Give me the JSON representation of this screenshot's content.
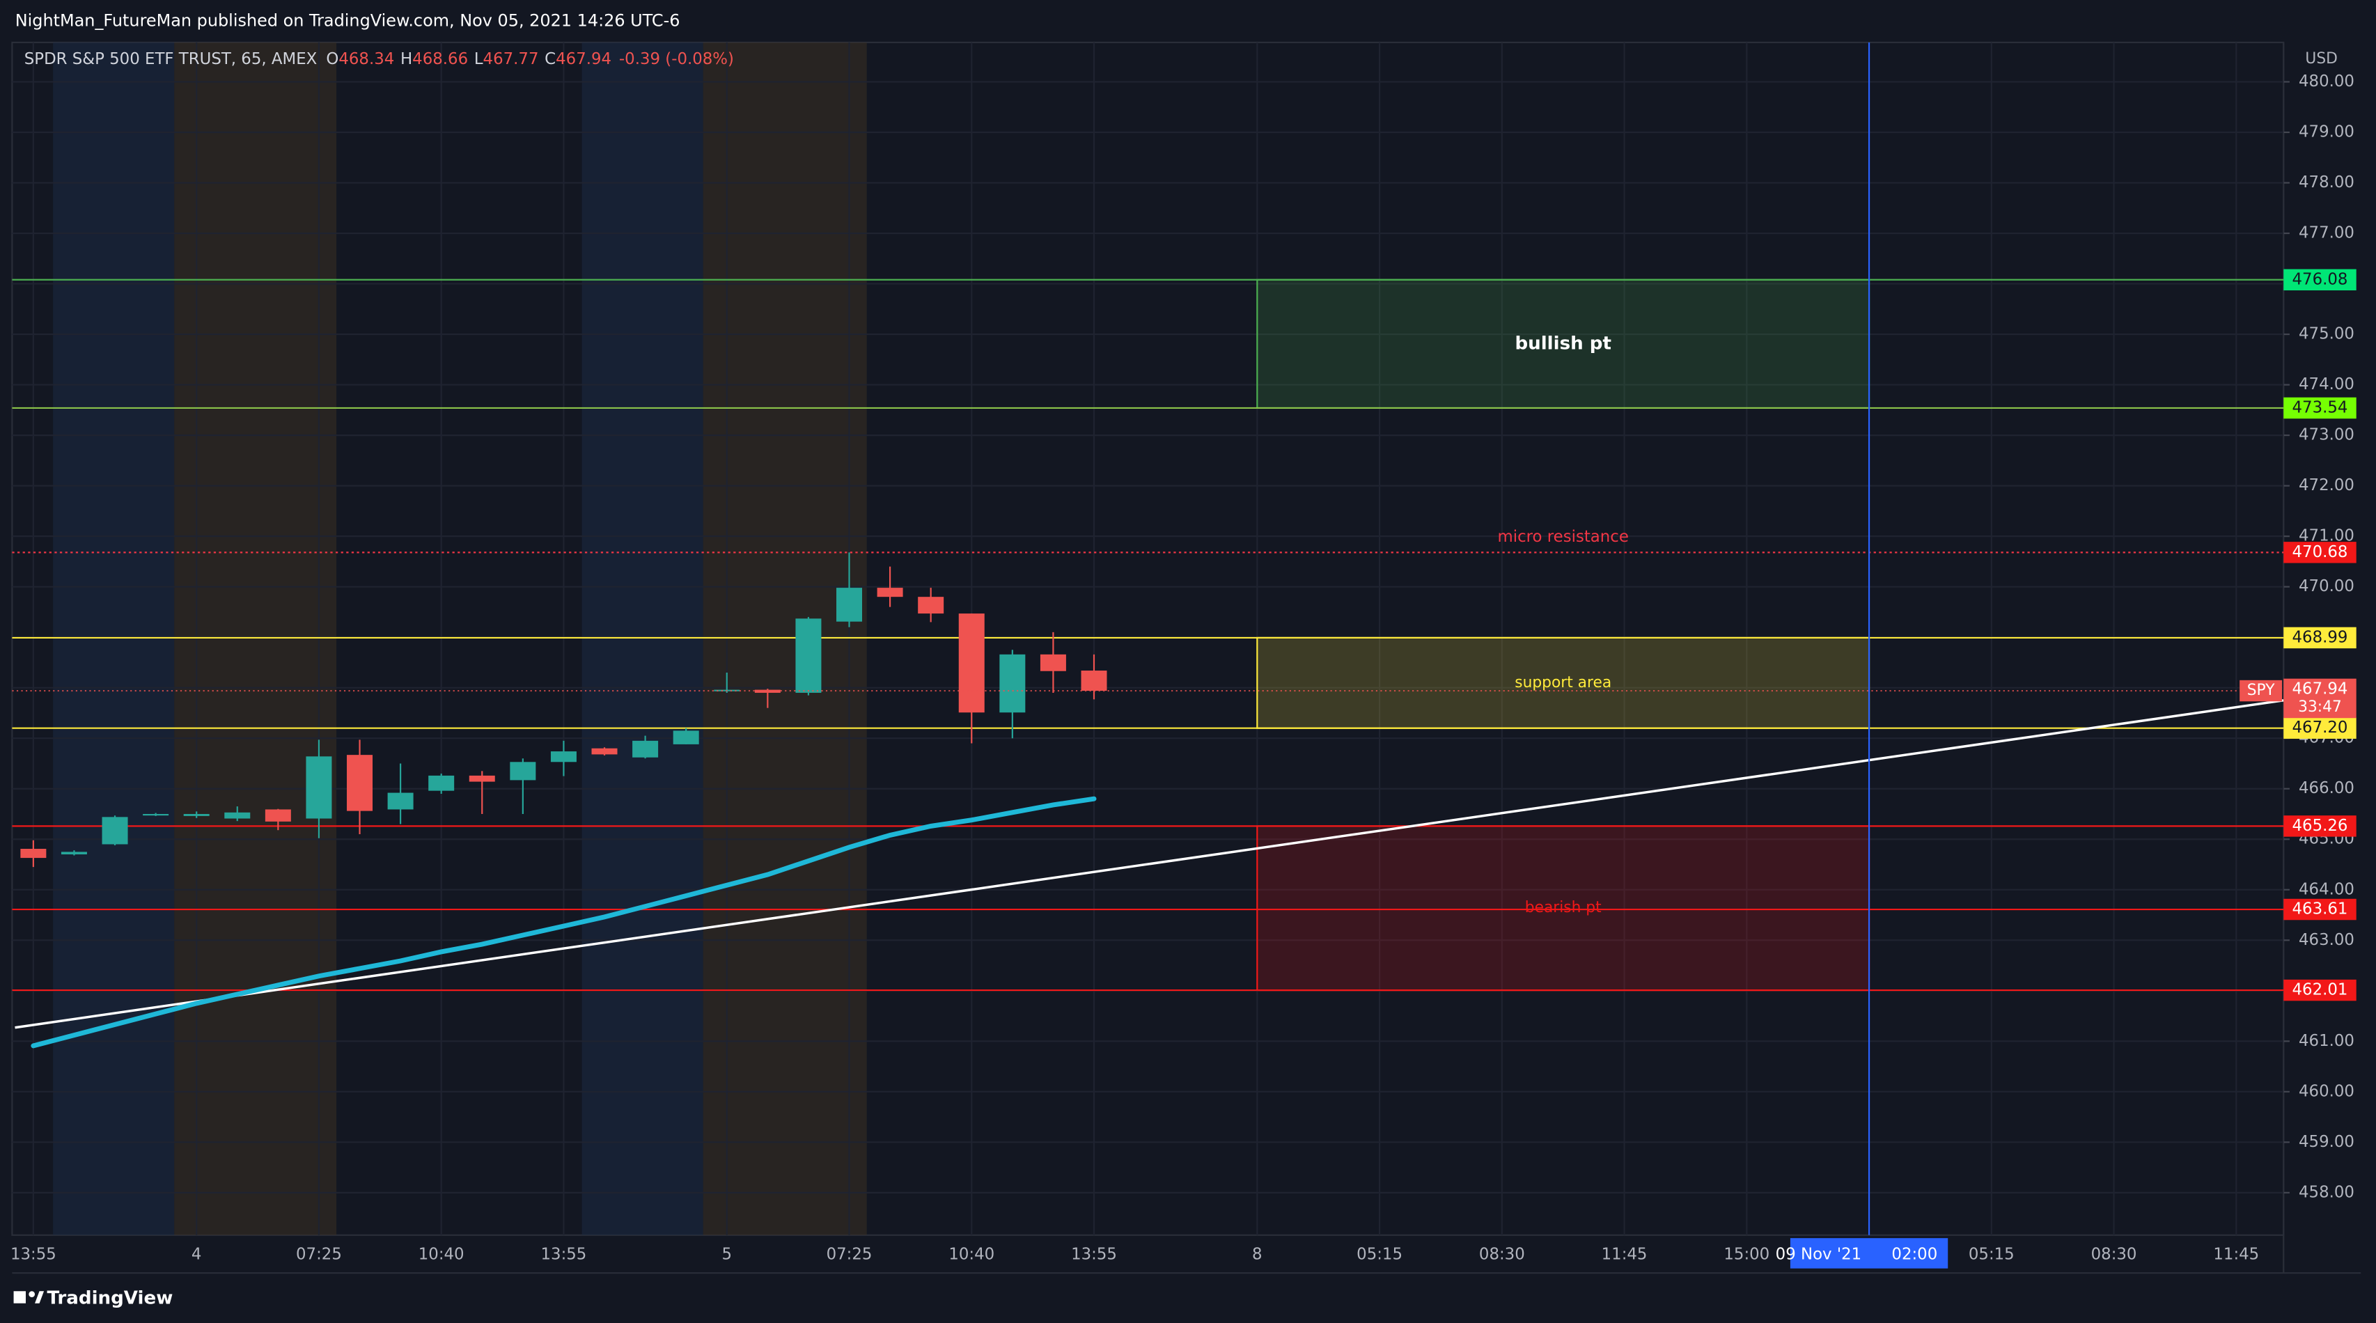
{
  "chart_data": {
    "type": "candlestick",
    "header": "NightMan_FutureMan published on TradingView.com, Nov 05, 2021 14:26 UTC-6",
    "legend": {
      "symbol": "SPDR S&P 500 ETF TRUST, 65, AMEX",
      "fields": [
        {
          "key": "O",
          "value": 468.34
        },
        {
          "key": "H",
          "value": 468.66
        },
        {
          "key": "L",
          "value": 467.77
        },
        {
          "key": "C",
          "value": 467.94
        }
      ],
      "change": "-0.39 (-0.08%)"
    },
    "currency": "USD",
    "footer": "TradingView",
    "up_color": "#26a69a",
    "down_color": "#ef5350",
    "open": [
      464.81,
      464.7,
      464.9,
      465.48,
      465.46,
      465.41,
      465.59,
      465.41,
      466.67,
      465.59,
      465.96,
      466.26,
      466.17,
      466.53,
      466.8,
      466.62,
      466.88,
      467.93,
      467.96,
      467.9,
      469.31,
      469.98,
      469.8,
      469.47,
      467.51,
      468.66,
      468.34
    ],
    "high": [
      464.98,
      464.78,
      465.47,
      465.52,
      465.55,
      465.65,
      465.6,
      466.97,
      466.97,
      466.5,
      466.3,
      466.35,
      466.6,
      466.95,
      466.82,
      467.05,
      467.2,
      468.3,
      467.98,
      469.4,
      470.68,
      470.4,
      469.98,
      469.47,
      468.75,
      469.1,
      468.66
    ],
    "low": [
      464.45,
      464.68,
      464.88,
      465.46,
      465.42,
      465.36,
      465.18,
      465.02,
      465.1,
      465.3,
      465.9,
      465.5,
      465.5,
      466.25,
      466.66,
      466.6,
      466.88,
      467.9,
      467.6,
      467.85,
      469.2,
      469.6,
      469.3,
      466.9,
      467.0,
      467.9,
      467.77
    ],
    "close": [
      464.63,
      464.75,
      465.44,
      465.5,
      465.5,
      465.53,
      465.35,
      466.64,
      465.56,
      465.92,
      466.26,
      466.14,
      466.53,
      466.74,
      466.68,
      466.95,
      467.15,
      467.96,
      467.9,
      469.37,
      469.98,
      469.8,
      469.47,
      467.51,
      468.66,
      468.33,
      467.94
    ],
    "ma": {
      "color": "#1fb8d8",
      "values": [
        460.91,
        461.12,
        461.33,
        461.54,
        461.75,
        461.93,
        462.11,
        462.29,
        462.44,
        462.59,
        462.77,
        462.92,
        463.1,
        463.28,
        463.46,
        463.67,
        463.88,
        464.09,
        464.3,
        464.57,
        464.84,
        465.08,
        465.26,
        465.38,
        465.53,
        465.68,
        465.8
      ]
    },
    "trendline": {
      "color": "#ffffff",
      "x": [
        -0.45,
        55.16
      ],
      "y": [
        461.27,
        467.75
      ]
    },
    "levels": [
      {
        "value": 476.08,
        "label": "476.08",
        "color": "#4caf50",
        "label_bg": "#00e676",
        "text_color": "#131722",
        "style": "solid"
      },
      {
        "value": 473.54,
        "label": "473.54",
        "color": "#8bc34a",
        "label_bg": "#76ff03",
        "text_color": "#131722",
        "style": "solid"
      },
      {
        "value": 470.68,
        "label": "470.68",
        "color": "#f23645",
        "label_bg": "#f21818",
        "text_color": "#ffffff",
        "style": "dotted",
        "text": "micro resistance"
      },
      {
        "value": 468.99,
        "label": "468.99",
        "color": "#ffeb3b",
        "label_bg": "#ffeb3b",
        "text_color": "#131722",
        "style": "solid"
      },
      {
        "value": 467.2,
        "label": "467.20",
        "color": "#ffeb3b",
        "label_bg": "#ffeb3b",
        "text_color": "#131722",
        "style": "solid"
      },
      {
        "value": 465.26,
        "label": "465.26",
        "color": "#f21818",
        "label_bg": "#f21818",
        "text_color": "#ffffff",
        "style": "solid"
      },
      {
        "value": 463.61,
        "label": "463.61",
        "color": "#f21818",
        "label_bg": "#f21818",
        "text_color": "#ffffff",
        "style": "solid"
      },
      {
        "value": 462.01,
        "label": "462.01",
        "color": "#f21818",
        "label_bg": "#f21818",
        "text_color": "#ffffff",
        "style": "solid"
      }
    ],
    "zones": [
      {
        "label": "bullish pt",
        "x": [
          30,
          45
        ],
        "y": [
          473.54,
          476.08
        ],
        "color": "#4caf50",
        "text_color": "#ffffff"
      },
      {
        "label": "support area",
        "x": [
          30,
          45
        ],
        "y": [
          467.2,
          468.99
        ],
        "color": "#ffeb3b",
        "text_color": "#ffeb3b"
      },
      {
        "label": "bearish pt",
        "x": [
          30,
          45
        ],
        "y": [
          462.01,
          465.26
        ],
        "color": "#f21818",
        "text_color": "#f21818"
      }
    ],
    "last": {
      "symbol": "SPY",
      "price": 467.94,
      "countdown": "33:47",
      "color": "#ef5350"
    },
    "cursor": {
      "value": 45,
      "label": "09 Nov '21",
      "time": "02:00",
      "color": "#2962ff"
    },
    "xlim": [
      -0.52,
      55.16
    ],
    "xticks": [
      {
        "value": 0,
        "label": "13:55"
      },
      {
        "value": 4,
        "label": "4"
      },
      {
        "value": 7,
        "label": "07:25"
      },
      {
        "value": 10,
        "label": "10:40"
      },
      {
        "value": 13,
        "label": "13:55"
      },
      {
        "value": 17,
        "label": "5"
      },
      {
        "value": 20,
        "label": "07:25"
      },
      {
        "value": 23,
        "label": "10:40"
      },
      {
        "value": 26,
        "label": "13:55"
      },
      {
        "value": 30,
        "label": "8"
      },
      {
        "value": 33,
        "label": "05:15"
      },
      {
        "value": 36,
        "label": "08:30"
      },
      {
        "value": 39,
        "label": "11:45"
      },
      {
        "value": 42,
        "label": "15:00"
      },
      {
        "value": 48,
        "label": "05:15"
      },
      {
        "value": 51,
        "label": "08:30"
      },
      {
        "value": 54,
        "label": "11:45"
      }
    ],
    "ylim": [
      457.16,
      480.78
    ],
    "yticks": [
      {
        "value": 458,
        "label": "458.00"
      },
      {
        "value": 459,
        "label": "459.00"
      },
      {
        "value": 460,
        "label": "460.00"
      },
      {
        "value": 461,
        "label": "461.00"
      },
      {
        "value": 462,
        "label": "462.00"
      },
      {
        "value": 463,
        "label": "463.00"
      },
      {
        "value": 464,
        "label": "464.00"
      },
      {
        "value": 465,
        "label": "465.00"
      },
      {
        "value": 466,
        "label": "466.00"
      },
      {
        "value": 467,
        "label": "467.00"
      },
      {
        "value": 468,
        "label": "468.00"
      },
      {
        "value": 469,
        "label": "469.00"
      },
      {
        "value": 470,
        "label": "470.00"
      },
      {
        "value": 471,
        "label": "471.00"
      },
      {
        "value": 472,
        "label": "472.00"
      },
      {
        "value": 473,
        "label": "473.00"
      },
      {
        "value": 474,
        "label": "474.00"
      },
      {
        "value": 475,
        "label": "475.00"
      },
      {
        "value": 476,
        "label": "476.00"
      },
      {
        "value": 477,
        "label": "477.00"
      },
      {
        "value": 478,
        "label": "478.00"
      },
      {
        "value": 479,
        "label": "479.00"
      },
      {
        "value": 480,
        "label": "480.00"
      }
    ],
    "grid": true
  }
}
